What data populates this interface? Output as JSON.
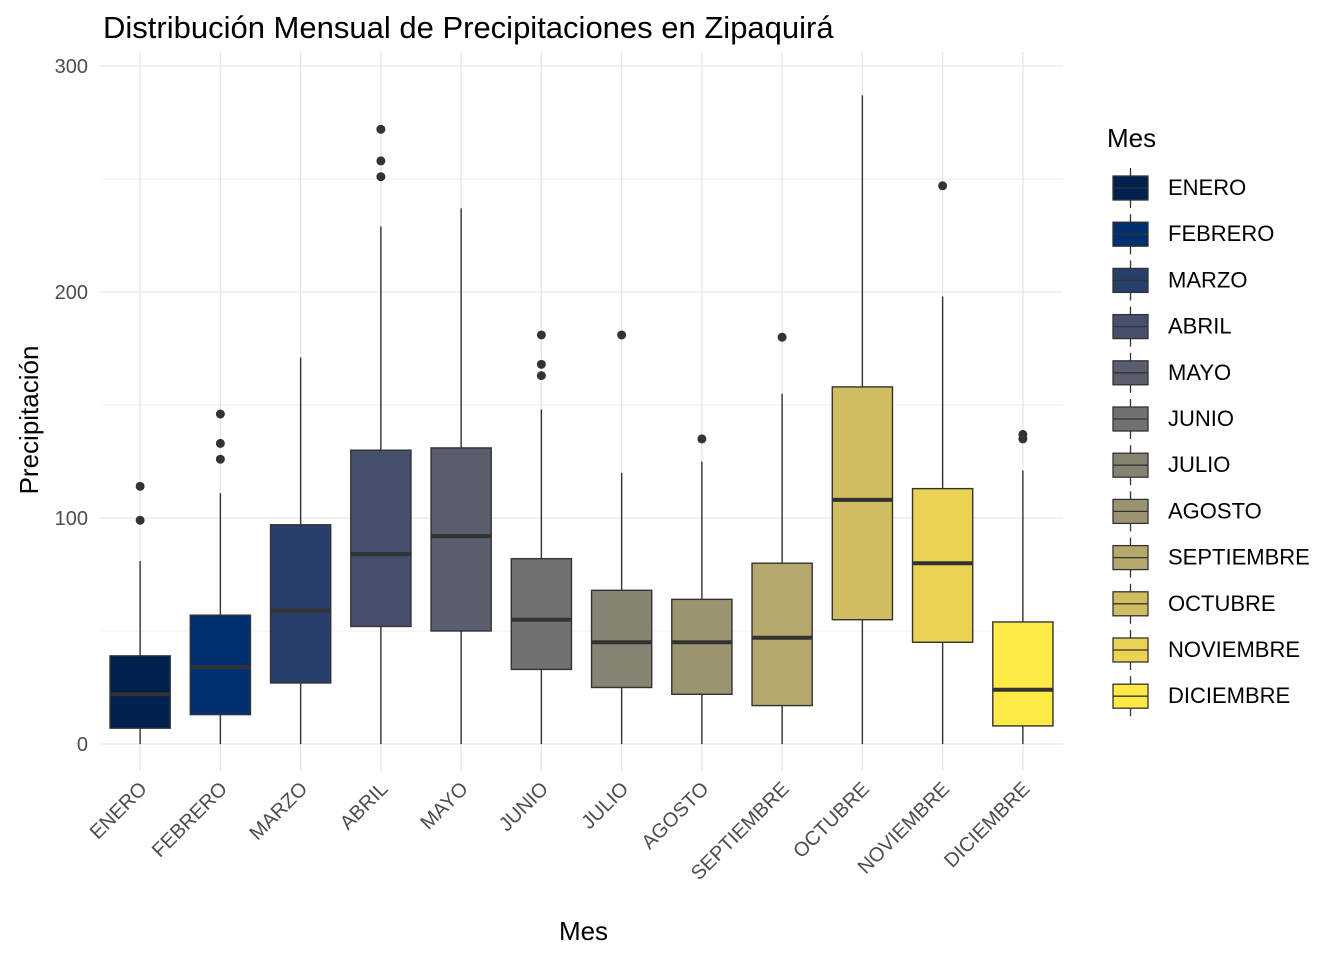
{
  "chart_data": {
    "type": "boxplot",
    "title": "Distribución Mensual de Precipitaciones en Zipaquirá",
    "xlabel": "Mes",
    "ylabel": "Precipitación",
    "ylim": [
      -12,
      300
    ],
    "yticks": [
      0,
      100,
      200,
      300
    ],
    "grid": true,
    "legend": {
      "title": "Mes",
      "placement": "right"
    },
    "categories": [
      "ENERO",
      "FEBRERO",
      "MARZO",
      "ABRIL",
      "MAYO",
      "JUNIO",
      "JULIO",
      "AGOSTO",
      "SEPTIEMBRE",
      "OCTUBRE",
      "NOVIEMBRE",
      "DICIEMBRE"
    ],
    "boxes": [
      {
        "name": "ENERO",
        "color": "#00204d",
        "min": 0,
        "q1": 7,
        "median": 22,
        "q3": 39,
        "max": 81,
        "outliers": [
          99,
          114
        ]
      },
      {
        "name": "FEBRERO",
        "color": "#002f6f",
        "min": 0,
        "q1": 13,
        "median": 34,
        "q3": 57,
        "max": 111,
        "outliers": [
          126,
          133,
          146
        ]
      },
      {
        "name": "MARZO",
        "color": "#283f6b",
        "min": 0,
        "q1": 27,
        "median": 59,
        "q3": 97,
        "max": 171,
        "outliers": []
      },
      {
        "name": "ABRIL",
        "color": "#464f6b",
        "min": 0,
        "q1": 52,
        "median": 84,
        "q3": 130,
        "max": 229,
        "outliers": [
          251,
          258,
          272
        ]
      },
      {
        "name": "MAYO",
        "color": "#5b5e6d",
        "min": 0,
        "q1": 50,
        "median": 92,
        "q3": 131,
        "max": 237,
        "outliers": []
      },
      {
        "name": "JUNIO",
        "color": "#717171",
        "min": 0,
        "q1": 33,
        "median": 55,
        "q3": 82,
        "max": 148,
        "outliers": [
          163,
          168,
          181
        ]
      },
      {
        "name": "JULIO",
        "color": "#868373",
        "min": 0,
        "q1": 25,
        "median": 45,
        "q3": 68,
        "max": 120,
        "outliers": [
          181
        ]
      },
      {
        "name": "AGOSTO",
        "color": "#9c9471",
        "min": 0,
        "q1": 22,
        "median": 45,
        "q3": 64,
        "max": 125,
        "outliers": [
          135
        ]
      },
      {
        "name": "SEPTIEMBRE",
        "color": "#b5a86d",
        "min": 0,
        "q1": 17,
        "median": 47,
        "q3": 80,
        "max": 155,
        "outliers": [
          180
        ]
      },
      {
        "name": "OCTUBRE",
        "color": "#d0bd62",
        "min": 0,
        "q1": 55,
        "median": 108,
        "q3": 158,
        "max": 287,
        "outliers": []
      },
      {
        "name": "NOVIEMBRE",
        "color": "#ebd255",
        "min": 0,
        "q1": 45,
        "median": 80,
        "q3": 113,
        "max": 198,
        "outliers": [
          247
        ]
      },
      {
        "name": "DICIEMBRE",
        "color": "#ffe945",
        "min": 0,
        "q1": 8,
        "median": 24,
        "q3": 54,
        "max": 121,
        "outliers": [
          135,
          137
        ]
      }
    ]
  }
}
